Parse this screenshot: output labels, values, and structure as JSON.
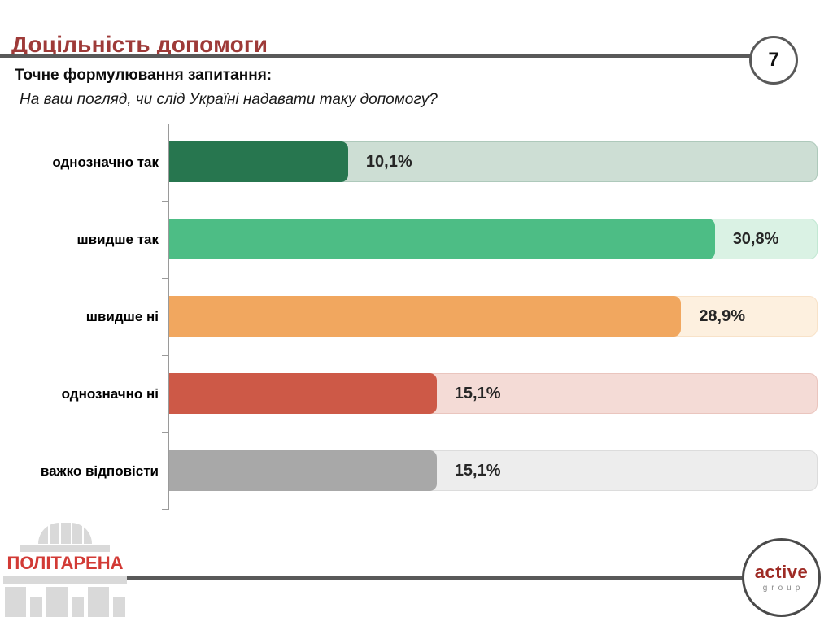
{
  "slide": {
    "title": "Доцільність допомоги",
    "page_number": "7",
    "question_label": "Точне формулювання запитання:",
    "question_text": "На ваш погляд, чи слід Україні надавати таку допомогу?"
  },
  "chart_data": {
    "type": "bar",
    "orientation": "horizontal",
    "title": "",
    "categories": [
      "однозначно так",
      "швидше так",
      "швидше ні",
      "однозначно ні",
      "важко відповісти"
    ],
    "values": [
      10.1,
      30.8,
      28.9,
      15.1,
      15.1
    ],
    "value_labels": [
      "10,1%",
      "30,8%",
      "28,9%",
      "15,1%",
      "15,1%"
    ],
    "xlim": [
      0,
      36.6
    ],
    "grid": false,
    "legend": false,
    "bar_colors": [
      "#27764F",
      "#4DBD85",
      "#F1A75F",
      "#CD5947",
      "#A8A8A8"
    ],
    "track_colors": [
      "#CDDED4",
      "#DAF2E4",
      "#FDF0DF",
      "#F4DBD6",
      "#EDEDED"
    ],
    "track_border_colors": [
      "#AEC9BB",
      "#C2E8D3",
      "#F8E2C8",
      "#EAC5BE",
      "#DCDCDC"
    ]
  },
  "footer": {
    "politarena_text": "ПОЛІТАРЕНА",
    "active_group_line1": "active",
    "active_group_line2": "group"
  },
  "colors": {
    "title_text": "#9E3A38",
    "rule": "#595959",
    "axis": "#9A9A9A",
    "category_label": "#000000",
    "value_label": "#262626",
    "left_rule": "#BFBFBF",
    "politarena_red": "#D23A35",
    "building_gray": "#D9D9D9",
    "active_red": "#9E2B25",
    "active_gray": "#8A8A8A",
    "circle_border": "#595959"
  }
}
